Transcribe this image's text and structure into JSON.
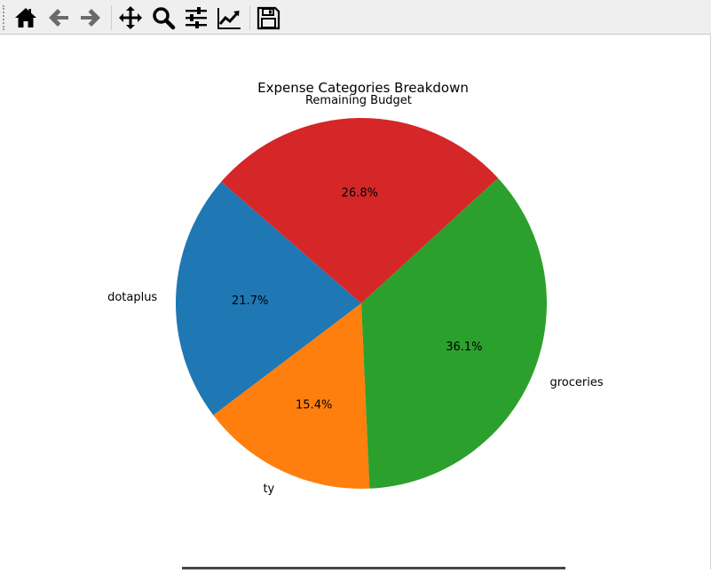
{
  "toolbar": {
    "buttons": [
      {
        "name": "home-button",
        "icon": "home-icon"
      },
      {
        "name": "back-button",
        "icon": "arrow-left-icon"
      },
      {
        "name": "forward-button",
        "icon": "arrow-right-icon"
      },
      {
        "name": "pan-button",
        "icon": "move-icon"
      },
      {
        "name": "zoom-button",
        "icon": "magnifier-icon"
      },
      {
        "name": "configure-subplots-button",
        "icon": "sliders-icon"
      },
      {
        "name": "edit-axis-button",
        "icon": "line-chart-icon"
      },
      {
        "name": "save-button",
        "icon": "floppy-disk-icon"
      }
    ]
  },
  "chart_data": {
    "type": "pie",
    "title": "Expense Categories Breakdown",
    "start_angle_deg": 139,
    "direction": "counterclockwise",
    "slices": [
      {
        "label": "dotaplus",
        "pct_label": "21.7%",
        "value": 21.7,
        "color": "#1f77b4"
      },
      {
        "label": "ty",
        "pct_label": "15.4%",
        "value": 15.4,
        "color": "#ff7f0e"
      },
      {
        "label": "groceries",
        "pct_label": "36.1%",
        "value": 36.1,
        "color": "#2ca02c"
      },
      {
        "label": "Remaining Budget",
        "pct_label": "26.8%",
        "value": 26.8,
        "color": "#d62728"
      }
    ]
  }
}
